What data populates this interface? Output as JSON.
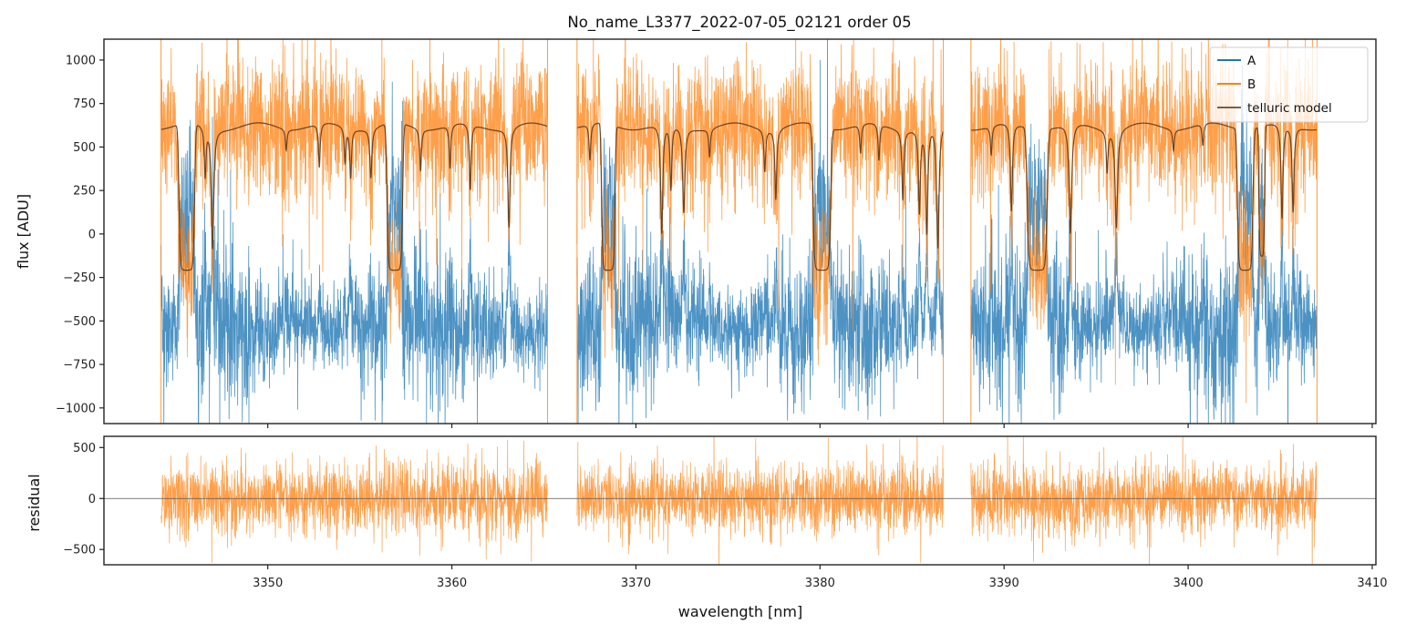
{
  "chart_data": [
    {
      "type": "line",
      "title": "No_name_L3377_2022-07-05_02121  order 05",
      "xlabel": "",
      "ylabel": "flux [ADU]",
      "xlim": [
        3341.1,
        3410.2
      ],
      "ylim": [
        -1090,
        1120
      ],
      "yticks": [
        1000,
        750,
        500,
        250,
        0,
        -250,
        -500,
        -750,
        -1000
      ],
      "ytick_labels": [
        "1000",
        "750",
        "500",
        "250",
        "0",
        "−250",
        "−500",
        "−750",
        "−1000"
      ],
      "xticks": [
        3350,
        3360,
        3370,
        3380,
        3390,
        3400,
        3410
      ],
      "grid": false,
      "legend": {
        "placement": "top-right",
        "entries": [
          {
            "label": "A",
            "color": "#1f77b4"
          },
          {
            "label": "B",
            "color": "#ff7f0e"
          },
          {
            "label": "telluric model",
            "color": "#5a3a1e"
          }
        ]
      },
      "segments": [
        {
          "x_start": 3344.2,
          "x_end": 3365.2
        },
        {
          "x_start": 3366.8,
          "x_end": 3386.7
        },
        {
          "x_start": 3388.2,
          "x_end": 3407.0
        }
      ],
      "series": [
        {
          "name": "A",
          "color": "#1f77b4",
          "continuum_mean": -550,
          "noise_sigma": 170
        },
        {
          "name": "B",
          "color": "#ff7f0e",
          "continuum_mean": 620,
          "noise_sigma": 190
        },
        {
          "name": "telluric model",
          "color": "#5a3a1e",
          "continuum": 620,
          "saturation_floor": -210
        }
      ],
      "telluric_lines": [
        {
          "x": 3345.6,
          "depth": 1.0,
          "width": 0.35
        },
        {
          "x": 3346.6,
          "depth": 0.35,
          "width": 0.05
        },
        {
          "x": 3347.0,
          "depth": 0.85,
          "width": 0.05
        },
        {
          "x": 3351.0,
          "depth": 0.15,
          "width": 0.05
        },
        {
          "x": 3352.8,
          "depth": 0.3,
          "width": 0.05
        },
        {
          "x": 3354.2,
          "depth": 0.25,
          "width": 0.05
        },
        {
          "x": 3354.5,
          "depth": 0.35,
          "width": 0.05
        },
        {
          "x": 3355.6,
          "depth": 0.35,
          "width": 0.06
        },
        {
          "x": 3356.9,
          "depth": 1.0,
          "width": 0.35
        },
        {
          "x": 3358.3,
          "depth": 0.3,
          "width": 0.05
        },
        {
          "x": 3359.9,
          "depth": 0.3,
          "width": 0.05
        },
        {
          "x": 3361.0,
          "depth": 0.45,
          "width": 0.05
        },
        {
          "x": 3363.1,
          "depth": 0.7,
          "width": 0.05
        },
        {
          "x": 3367.5,
          "depth": 0.25,
          "width": 0.05
        },
        {
          "x": 3368.5,
          "depth": 1.0,
          "width": 0.3
        },
        {
          "x": 3371.4,
          "depth": 0.75,
          "width": 0.05
        },
        {
          "x": 3371.9,
          "depth": 0.45,
          "width": 0.05
        },
        {
          "x": 3372.6,
          "depth": 0.6,
          "width": 0.06
        },
        {
          "x": 3374.0,
          "depth": 0.2,
          "width": 0.05
        },
        {
          "x": 3377.0,
          "depth": 0.3,
          "width": 0.05
        },
        {
          "x": 3377.6,
          "depth": 0.5,
          "width": 0.05
        },
        {
          "x": 3380.1,
          "depth": 1.0,
          "width": 0.4
        },
        {
          "x": 3382.2,
          "depth": 0.2,
          "width": 0.05
        },
        {
          "x": 3383.2,
          "depth": 0.25,
          "width": 0.05
        },
        {
          "x": 3384.5,
          "depth": 0.5,
          "width": 0.05
        },
        {
          "x": 3385.4,
          "depth": 0.6,
          "width": 0.05
        },
        {
          "x": 3385.8,
          "depth": 0.75,
          "width": 0.05
        },
        {
          "x": 3386.4,
          "depth": 0.85,
          "width": 0.05
        },
        {
          "x": 3389.3,
          "depth": 0.2,
          "width": 0.05
        },
        {
          "x": 3390.4,
          "depth": 0.6,
          "width": 0.05
        },
        {
          "x": 3391.8,
          "depth": 1.0,
          "width": 0.45
        },
        {
          "x": 3393.6,
          "depth": 0.75,
          "width": 0.06
        },
        {
          "x": 3395.6,
          "depth": 0.3,
          "width": 0.05
        },
        {
          "x": 3396.1,
          "depth": 0.7,
          "width": 0.06
        },
        {
          "x": 3399.2,
          "depth": 0.15,
          "width": 0.05
        },
        {
          "x": 3400.8,
          "depth": 0.15,
          "width": 0.05
        },
        {
          "x": 3403.1,
          "depth": 1.0,
          "width": 0.35
        },
        {
          "x": 3404.0,
          "depth": 0.9,
          "width": 0.15
        },
        {
          "x": 3405.1,
          "depth": 0.65,
          "width": 0.05
        },
        {
          "x": 3405.7,
          "depth": 0.6,
          "width": 0.05
        }
      ]
    },
    {
      "type": "line",
      "title": "",
      "xlabel": "wavelength [nm]",
      "ylabel": "residual",
      "xlim": [
        3341.1,
        3410.2
      ],
      "ylim": [
        -650,
        610
      ],
      "yticks": [
        500,
        0,
        -500
      ],
      "ytick_labels": [
        "500",
        "0",
        "−500"
      ],
      "xticks": [
        3350,
        3360,
        3370,
        3380,
        3390,
        3400,
        3410
      ],
      "xtick_labels": [
        "3350",
        "3360",
        "3370",
        "3380",
        "3390",
        "3400",
        "3410"
      ],
      "grid": false,
      "reference_line": 0,
      "series": [
        {
          "name": "B residual",
          "color": "#ff7f0e",
          "mean": 0,
          "noise_sigma": 170
        }
      ]
    }
  ]
}
